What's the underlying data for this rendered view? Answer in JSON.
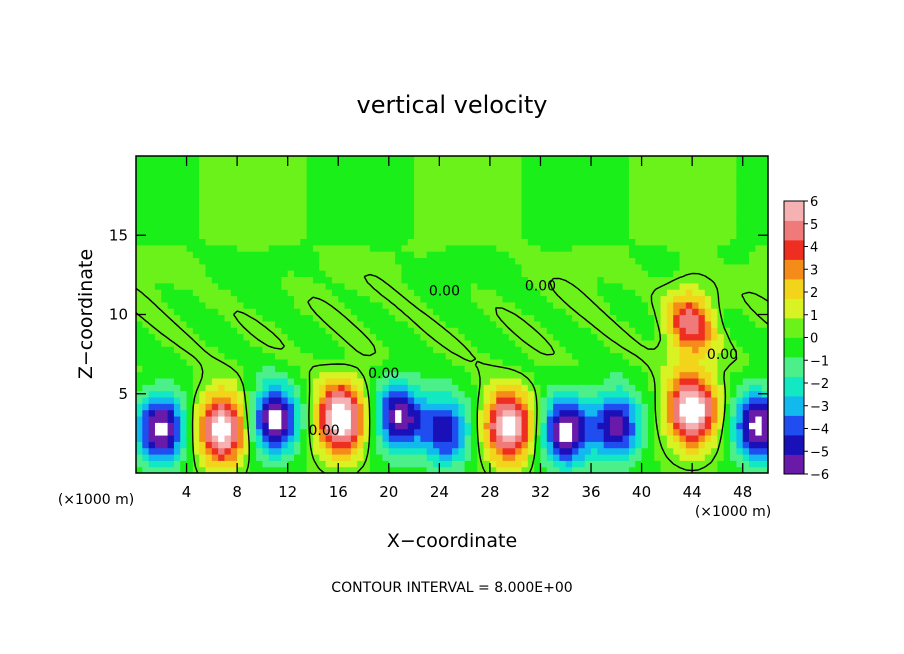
{
  "chart_data": {
    "type": "heatmap",
    "title": "vertical velocity",
    "xlabel": "X−coordinate",
    "ylabel": "Z−coordinate",
    "x_unit": "(×1000 m)",
    "y_unit": "(×1000 m)",
    "footer": "CONTOUR INTERVAL = 8.000E+00",
    "xlim": [
      0,
      50
    ],
    "ylim": [
      0,
      20
    ],
    "x_ticks": [
      4,
      8,
      12,
      16,
      20,
      24,
      28,
      32,
      36,
      40,
      44,
      48
    ],
    "y_ticks": [
      5,
      10,
      15
    ],
    "colorbar": {
      "range": [
        -6,
        6
      ],
      "ticks": [
        6,
        5,
        4,
        3,
        2,
        1,
        0,
        -1,
        -2,
        -3,
        -4,
        -5,
        -6
      ],
      "tick_labels": [
        "6",
        "5",
        "4",
        "3",
        "2",
        "1",
        "0",
        "−1",
        "−2",
        "−3",
        "−4",
        "−5",
        "−6"
      ],
      "colors": [
        "#6a1aa8",
        "#1a10b8",
        "#1f4df0",
        "#12b9ee",
        "#12e8c2",
        "#4cf08a",
        "#1aef1a",
        "#6af21a",
        "#d8f224",
        "#f2d41a",
        "#f58c1a",
        "#ef2e22",
        "#f07a7a",
        "#f6b2b2"
      ]
    },
    "contour_labels": [
      {
        "text": "0.00",
        "x": 30.5,
        "y": 11.2
      },
      {
        "text": "0.00",
        "x": 40.0,
        "y": 11.5
      },
      {
        "text": "0.00",
        "x": 24.5,
        "y": 6.0
      },
      {
        "text": "0.00",
        "x": 58.0,
        "y": 7.2
      },
      {
        "text": "0.00",
        "x": 18.6,
        "y": 2.4
      }
    ],
    "cells": [
      {
        "x": 2.0,
        "z": 2.8,
        "sign": -1,
        "peak": 6.5
      },
      {
        "x": 6.8,
        "z": 2.8,
        "sign": 1,
        "peak": 6.8
      },
      {
        "x": 11.0,
        "z": 3.4,
        "sign": -1,
        "peak": 6.5
      },
      {
        "x": 16.2,
        "z": 3.5,
        "sign": 1,
        "peak": 7.2
      },
      {
        "x": 20.8,
        "z": 3.6,
        "sign": -1,
        "peak": 6.0
      },
      {
        "x": 24.5,
        "z": 2.7,
        "sign": -1,
        "peak": 5.0
      },
      {
        "x": 29.5,
        "z": 3.0,
        "sign": 1,
        "peak": 6.8
      },
      {
        "x": 34.0,
        "z": 2.7,
        "sign": -1,
        "peak": 6.5
      },
      {
        "x": 38.0,
        "z": 3.0,
        "sign": -1,
        "peak": 5.5
      },
      {
        "x": 44.0,
        "z": 4.0,
        "sign": 1,
        "peak": 7.2
      },
      {
        "x": 49.2,
        "z": 3.0,
        "sign": -1,
        "peak": 6.5
      },
      {
        "x": 43.8,
        "z": 9.5,
        "sign": 1,
        "peak": 4.5
      }
    ]
  }
}
